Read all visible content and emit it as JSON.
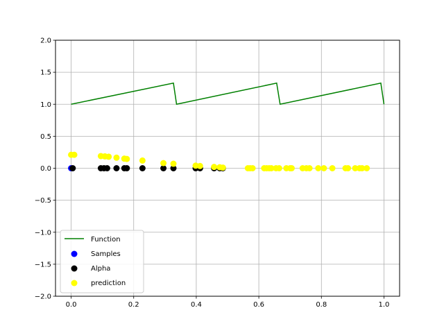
{
  "chart_data": {
    "type": "line+scatter",
    "xlim": [
      -0.05,
      1.05
    ],
    "ylim": [
      -2.0,
      2.0
    ],
    "xticks": [
      0.0,
      0.2,
      0.4,
      0.6,
      0.8,
      1.0
    ],
    "xtick_labels": [
      "0.0",
      "0.2",
      "0.4",
      "0.6",
      "0.8",
      "1.0"
    ],
    "yticks": [
      -2.0,
      -1.5,
      -1.0,
      -0.5,
      0.0,
      0.5,
      1.0,
      1.5,
      2.0
    ],
    "ytick_labels": [
      "−2.0",
      "−1.5",
      "−1.0",
      "−0.5",
      "0.0",
      "0.5",
      "1.0",
      "1.5",
      "2.0"
    ],
    "grid": true,
    "legend_position": "lower-left",
    "series": [
      {
        "name": "Function",
        "kind": "line",
        "color": "#008000",
        "x": [
          0.0,
          0.327,
          0.337,
          0.657,
          0.668,
          0.99,
          1.0
        ],
        "y": [
          1.0,
          1.33,
          1.0,
          1.33,
          1.0,
          1.33,
          1.0
        ]
      },
      {
        "name": "Samples",
        "kind": "scatter",
        "color": "#0000ff",
        "x": [
          0.0
        ],
        "y": [
          0.0
        ]
      },
      {
        "name": "Alpha",
        "kind": "scatter",
        "color": "#000000",
        "x": [
          0.005,
          0.095,
          0.105,
          0.115,
          0.145,
          0.17,
          0.178,
          0.228,
          0.295,
          0.327,
          0.398,
          0.412,
          0.457,
          0.475,
          0.485
        ],
        "y": [
          0,
          0,
          0,
          0,
          0,
          0,
          0,
          0,
          0,
          0,
          0,
          0,
          0,
          0,
          0
        ]
      },
      {
        "name": "prediction",
        "kind": "scatter",
        "color": "#ffff00",
        "x": [
          0.0,
          0.01,
          0.095,
          0.108,
          0.12,
          0.145,
          0.17,
          0.178,
          0.228,
          0.295,
          0.327,
          0.398,
          0.412,
          0.457,
          0.475,
          0.485,
          0.565,
          0.572,
          0.58,
          0.617,
          0.625,
          0.633,
          0.64,
          0.655,
          0.665,
          0.688,
          0.7,
          0.705,
          0.74,
          0.752,
          0.762,
          0.79,
          0.808,
          0.835,
          0.877,
          0.885,
          0.908,
          0.922,
          0.93,
          0.945
        ],
        "y": [
          0.21,
          0.21,
          0.19,
          0.185,
          0.18,
          0.165,
          0.15,
          0.145,
          0.12,
          0.08,
          0.07,
          0.04,
          0.035,
          0.02,
          0.015,
          0.01,
          0.0,
          0.0,
          0.0,
          0.0,
          0.0,
          0.0,
          0.0,
          0.0,
          0.0,
          0.0,
          0.0,
          0.0,
          0.0,
          0.0,
          0.0,
          0.0,
          0.0,
          0.0,
          0.0,
          0.0,
          0.0,
          0.0,
          0.0,
          0.0
        ]
      }
    ]
  }
}
